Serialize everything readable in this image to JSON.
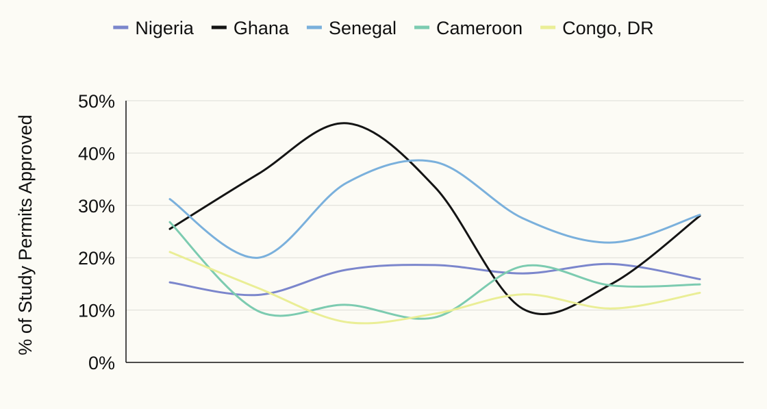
{
  "chart_data": {
    "type": "line",
    "ylabel": "% of Study Permits Approved",
    "xlabel": "",
    "ylim": [
      0,
      50
    ],
    "y_ticks": [
      "0%",
      "10%",
      "20%",
      "30%",
      "40%",
      "50%"
    ],
    "y_tick_values": [
      0,
      10,
      20,
      30,
      40,
      50
    ],
    "x": [
      1,
      2,
      3,
      4,
      5,
      6,
      7
    ],
    "grid": true,
    "legend_position": "top",
    "series": [
      {
        "name": "Nigeria",
        "color": "#7b86cc",
        "values": [
          15.3,
          12.9,
          17.7,
          18.6,
          17.0,
          18.8,
          15.9
        ]
      },
      {
        "name": "Ghana",
        "color": "#141414",
        "values": [
          25.5,
          36.0,
          45.7,
          33.5,
          10.2,
          15.0,
          28.0
        ]
      },
      {
        "name": "Senegal",
        "color": "#7ab0dc",
        "values": [
          31.2,
          20.0,
          34.3,
          38.3,
          27.5,
          22.9,
          28.2
        ]
      },
      {
        "name": "Cameroon",
        "color": "#7ccbb0",
        "values": [
          26.8,
          9.8,
          11.0,
          8.6,
          18.4,
          14.7,
          14.9
        ]
      },
      {
        "name": "Congo, DR",
        "color": "#eaee96",
        "values": [
          21.1,
          14.2,
          7.7,
          9.3,
          13.0,
          10.3,
          13.3
        ]
      }
    ]
  }
}
